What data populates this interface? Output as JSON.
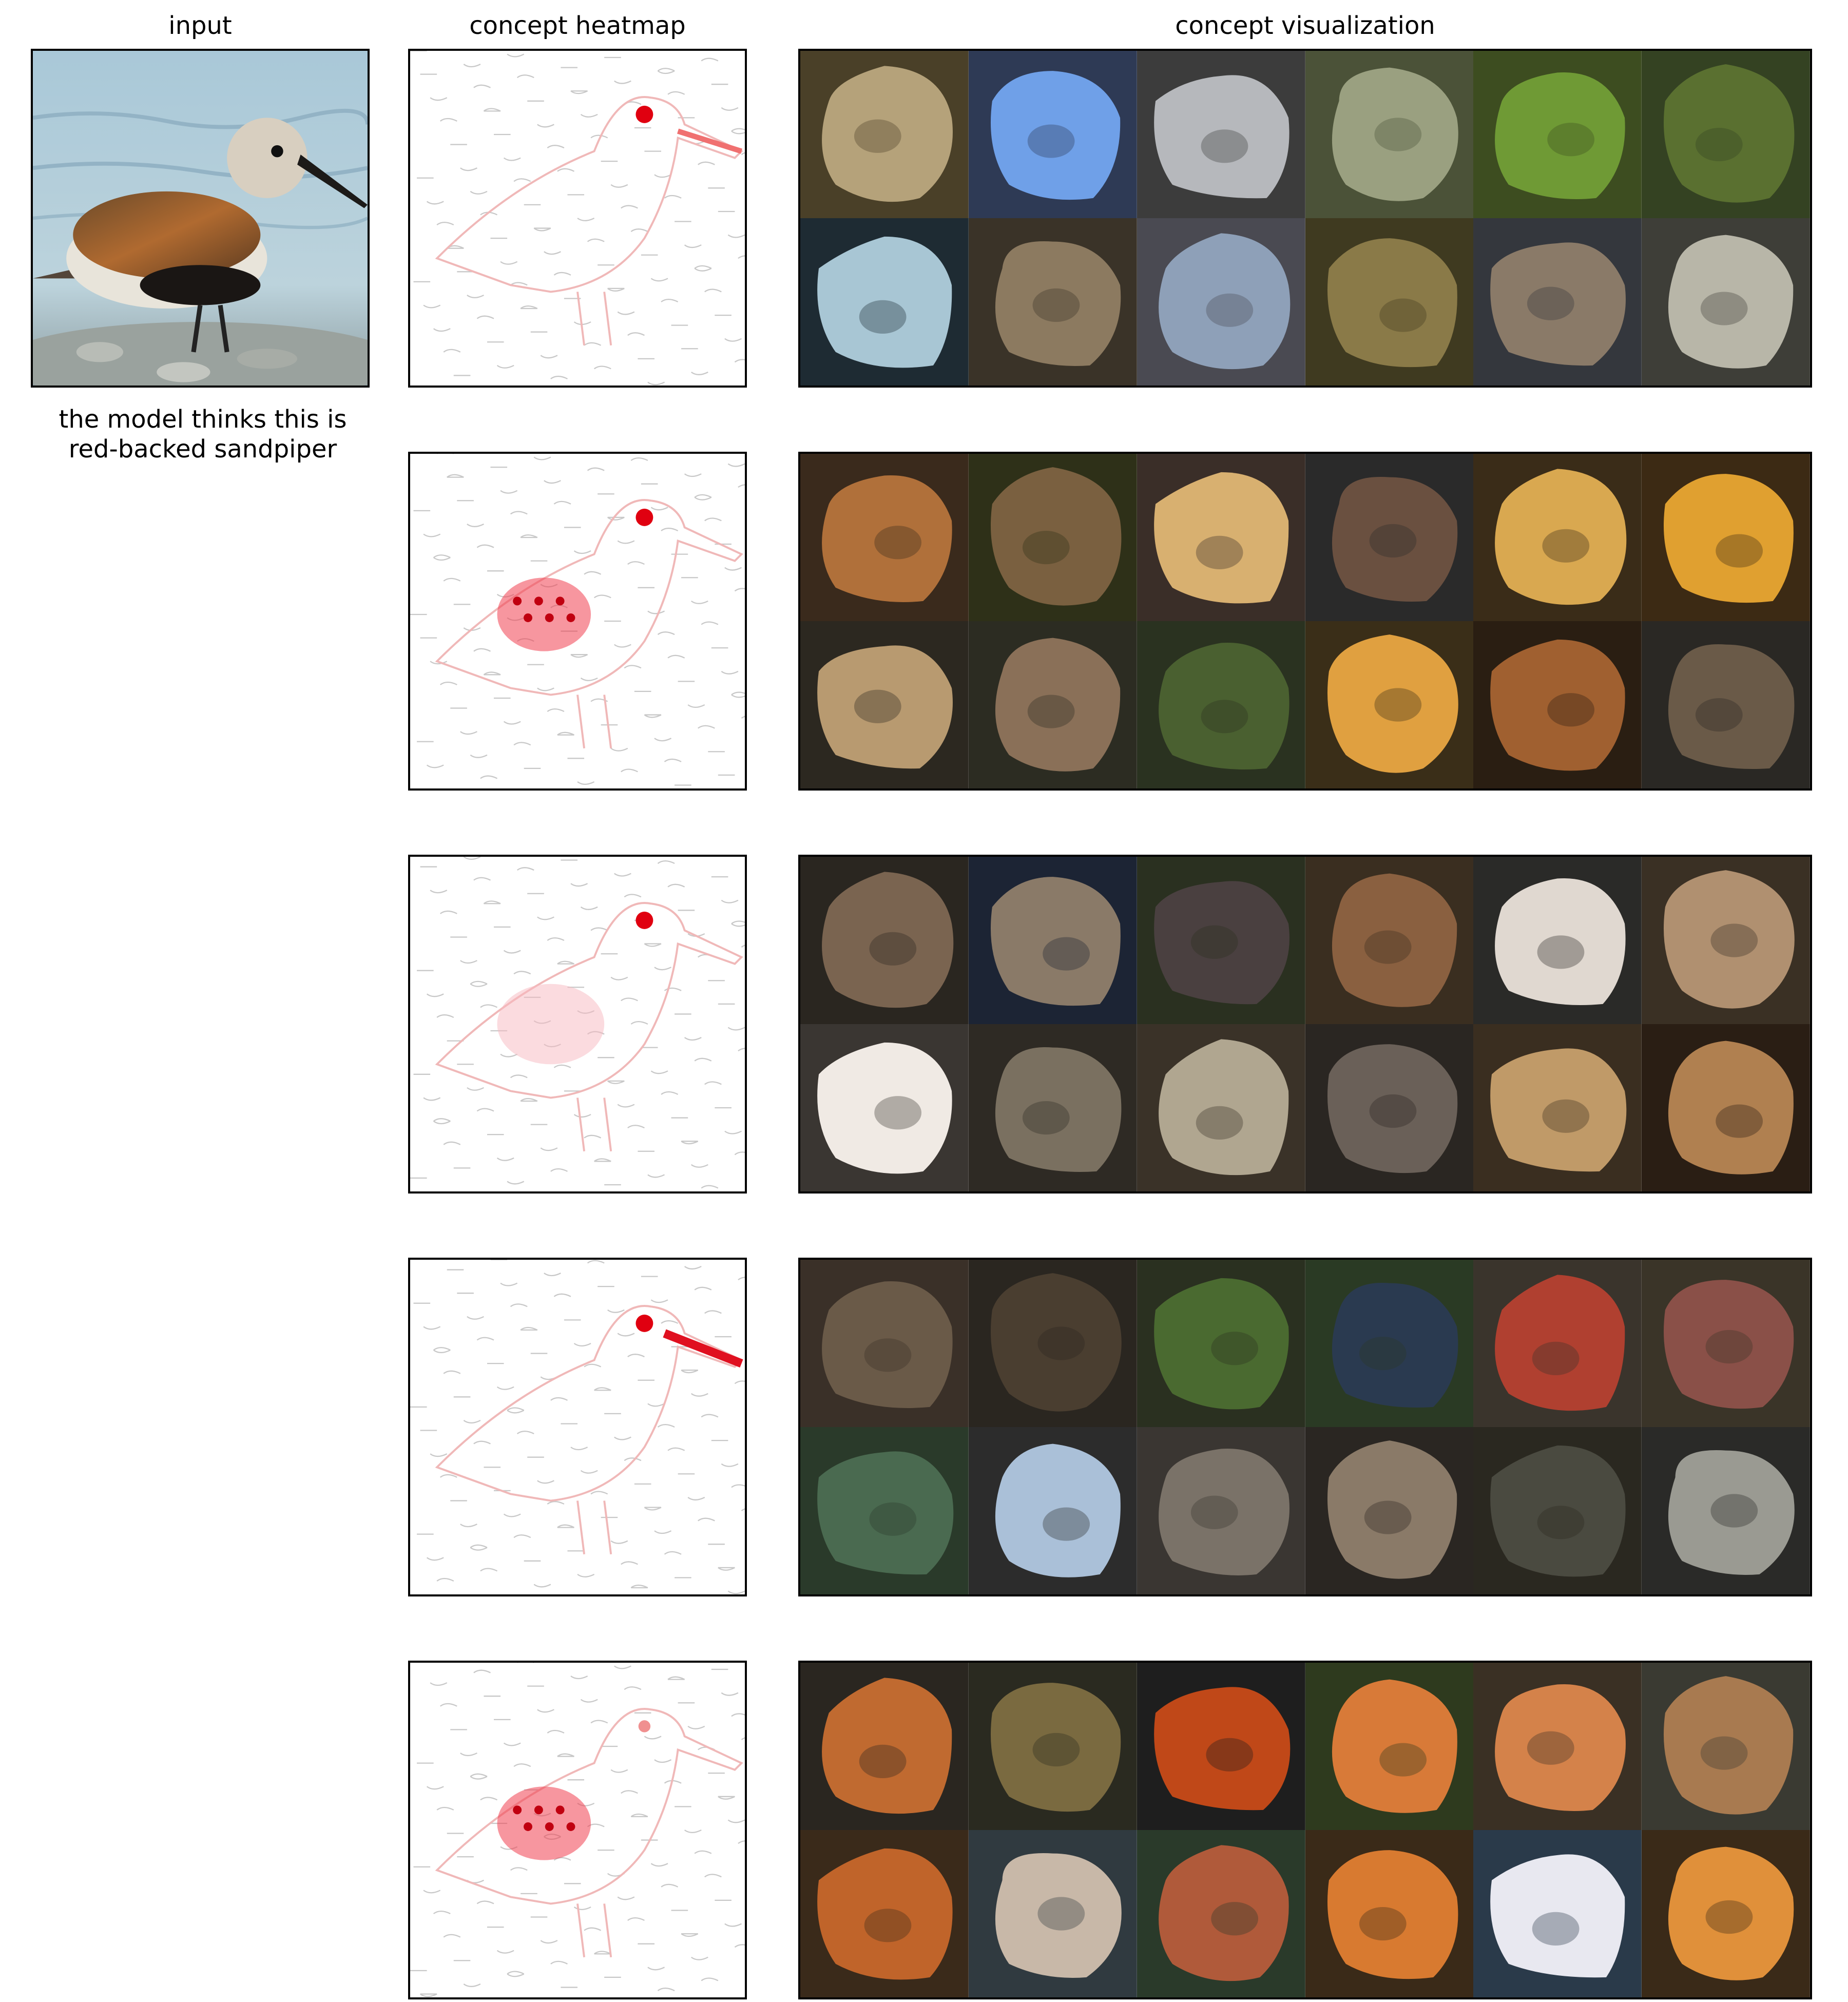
{
  "headers": {
    "input": "input",
    "heatmap": "concept heatmap",
    "visualization": "concept visualization"
  },
  "prediction": {
    "line1": "the model thinks this is",
    "line2": "red-backed sandpiper"
  },
  "concepts": [
    {
      "heat": [
        "eye",
        "beak-tip"
      ],
      "palette": [
        "#4a4028",
        "#2e3a55",
        "#3c3c3c",
        "#4b5238",
        "#3d4d20",
        "#344222",
        "#1e2b33",
        "#3a3328",
        "#4a4a52",
        "#3f3a20",
        "#34373d",
        "#3e3e38"
      ],
      "blobs": [
        "#b5a27a",
        "#6fa0e8",
        "#b6b8bc",
        "#9aa080",
        "#6f9a35",
        "#5a7030",
        "#a8c6d4",
        "#8c7a60",
        "#8ea0b8",
        "#8a7a48",
        "#8a7a68",
        "#b8b6a8"
      ]
    },
    {
      "heat": [
        "eye",
        "breast"
      ],
      "palette": [
        "#3a2a1c",
        "#2e3018",
        "#3a2e28",
        "#2a2a2a",
        "#3a2c18",
        "#3c2a14",
        "#2c2820",
        "#2c2c22",
        "#2a3220",
        "#3a2e18",
        "#2a1e12",
        "#2a2824"
      ],
      "blobs": [
        "#b0703a",
        "#7a6040",
        "#d8b070",
        "#6a5040",
        "#d9a850",
        "#e0a030",
        "#b89a70",
        "#8a7058",
        "#4a6030",
        "#e0a040",
        "#a06030",
        "#6a5a48"
      ]
    },
    {
      "heat": [
        "eye",
        "body"
      ],
      "palette": [
        "#2a2620",
        "#1c2434",
        "#2a3020",
        "#3a2e20",
        "#2a2a28",
        "#3a3024",
        "#3a3632",
        "#2e2a24",
        "#3a3228",
        "#2a2622",
        "#3a2e20",
        "#2a1e14"
      ],
      "blobs": [
        "#7a6450",
        "#8a7a68",
        "#4a4040",
        "#8a6040",
        "#e0d8d0",
        "#b09070",
        "#f0eae4",
        "#7a7060",
        "#b0a690",
        "#6a6058",
        "#c09a68",
        "#b08050"
      ]
    },
    {
      "heat": [
        "eye",
        "beak"
      ],
      "palette": [
        "#3a3028",
        "#2a2620",
        "#2a3020",
        "#2a3a24",
        "#3a342c",
        "#3a3428",
        "#2a3a2a",
        "#2c2c2c",
        "#3a3632",
        "#2a2622",
        "#2a2820",
        "#2a2a28"
      ],
      "blobs": [
        "#6a5a48",
        "#4a3e30",
        "#4a6a30",
        "#2a3a50",
        "#b04030",
        "#8a5048",
        "#4a6a50",
        "#aac0d8",
        "#7a7268",
        "#8a7a68",
        "#4a4a40",
        "#9a9a92"
      ]
    },
    {
      "heat": [
        "breast",
        "eye-faint"
      ],
      "palette": [
        "#2a2620",
        "#2a2a20",
        "#1e1e1e",
        "#2e3a1e",
        "#3a3024",
        "#3a3a32",
        "#3a2a1a",
        "#303a40",
        "#2a3a2a",
        "#3a2a18",
        "#2a3a4a",
        "#3a2a18"
      ],
      "blobs": [
        "#c06a30",
        "#7a6a40",
        "#c04818",
        "#d87a38",
        "#d4824a",
        "#a87a50",
        "#c0642a",
        "#c8b8a8",
        "#b05a3a",
        "#d87a30",
        "#e8e8f0",
        "#e0903a"
      ]
    }
  ]
}
